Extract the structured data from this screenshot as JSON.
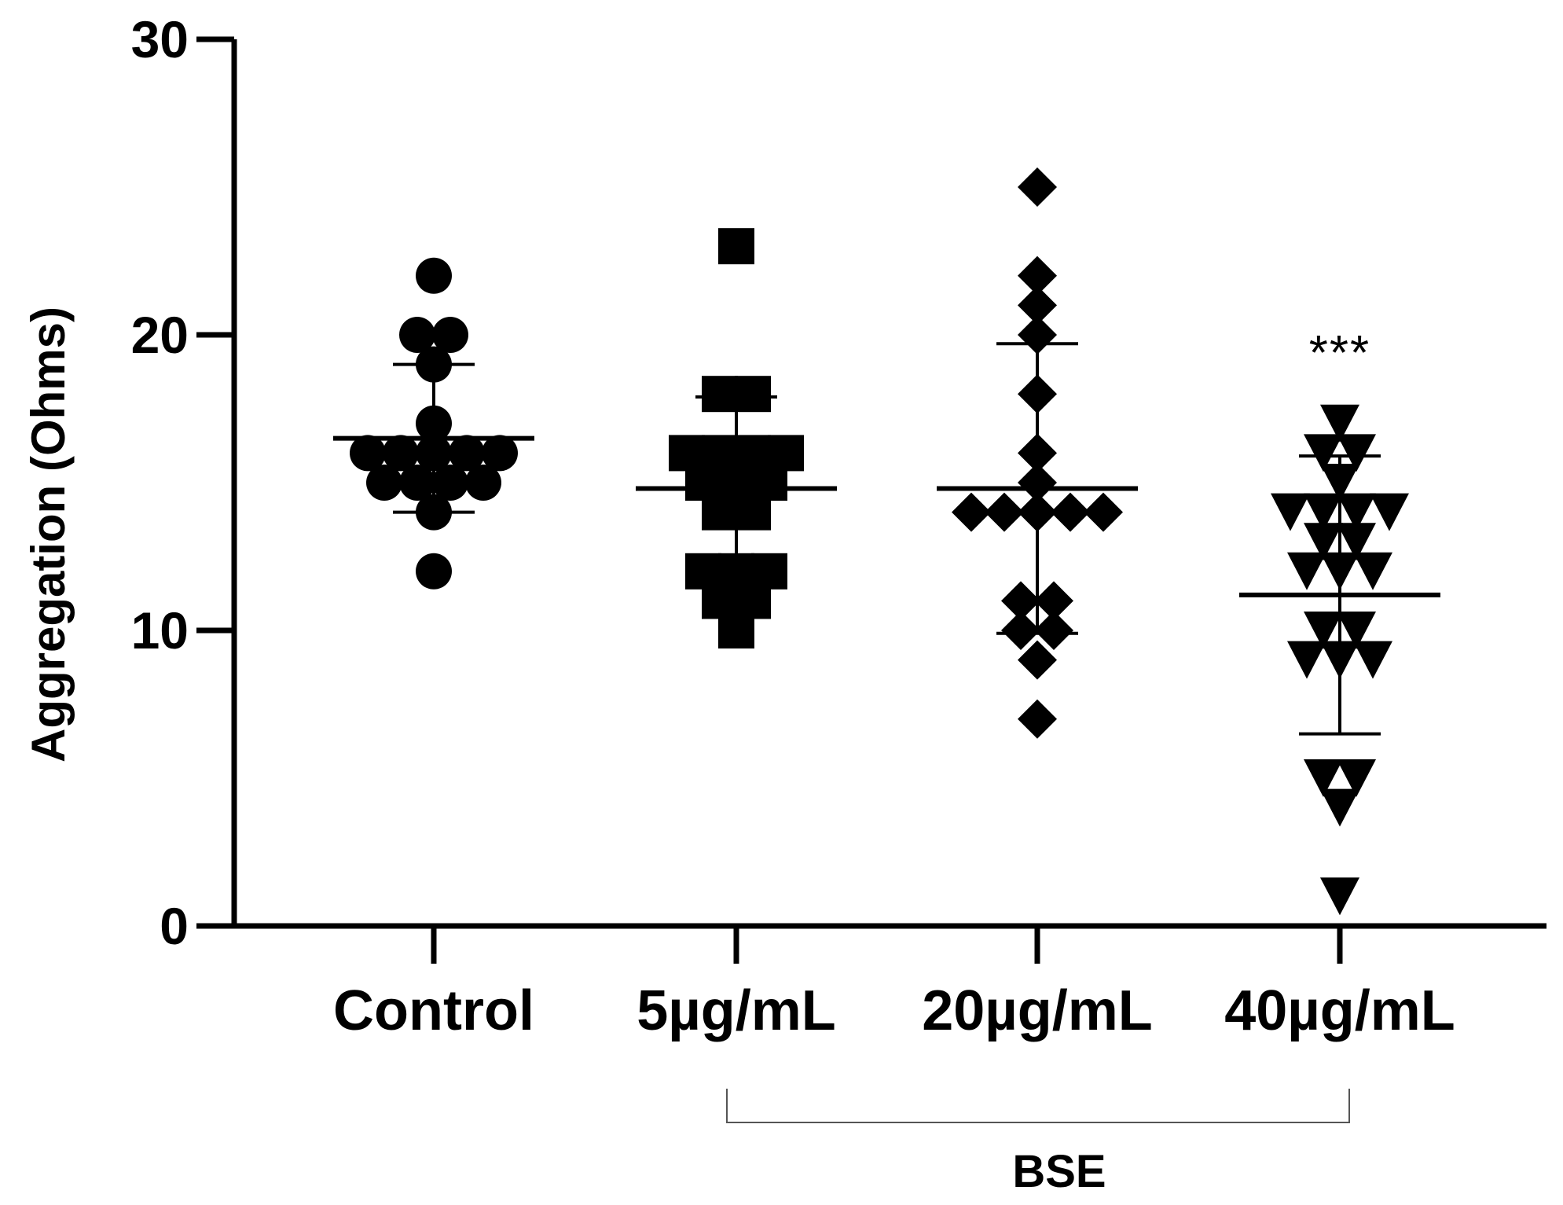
{
  "chart_data": {
    "type": "scatter",
    "title": "",
    "xlabel": "",
    "ylabel": "Aggregation (Ohms)",
    "ylim": [
      0,
      30
    ],
    "yticks": [
      0,
      10,
      20,
      30
    ],
    "categories": [
      "Control",
      "5µg/mL",
      "20µg/mL",
      "40µg/mL"
    ],
    "grid": false,
    "series": [
      {
        "name": "Control",
        "marker": "circle",
        "mean": 16.5,
        "sd": 2.5,
        "values": [
          22,
          20,
          20,
          19,
          17,
          16,
          16,
          16,
          16,
          16,
          15,
          15,
          15,
          15,
          14,
          12
        ]
      },
      {
        "name": "5µg/mL",
        "marker": "square",
        "mean": 14.8,
        "sd": 3.1,
        "values": [
          23,
          18,
          18,
          16,
          16,
          16,
          16,
          15,
          15,
          15,
          14,
          14,
          12,
          12,
          12,
          11,
          11,
          10
        ]
      },
      {
        "name": "20µg/mL",
        "marker": "diamond",
        "mean": 14.8,
        "sd": 4.9,
        "values": [
          25,
          22,
          21,
          20,
          18,
          16,
          15,
          14,
          14,
          14,
          14,
          14,
          11,
          11,
          10,
          10,
          9,
          7
        ]
      },
      {
        "name": "40µg/mL",
        "marker": "triangle-down",
        "mean": 11.2,
        "sd": 4.7,
        "values": [
          17,
          16,
          16,
          15,
          14,
          14,
          14,
          14,
          13,
          13,
          12,
          12,
          12,
          10,
          10,
          9,
          9,
          9,
          5,
          5,
          4,
          1
        ]
      }
    ],
    "annotations": [
      {
        "category": "40µg/mL",
        "text": "***"
      }
    ],
    "group_bracket": {
      "label": "BSE",
      "from": "5µg/mL",
      "to": "40µg/mL"
    }
  }
}
